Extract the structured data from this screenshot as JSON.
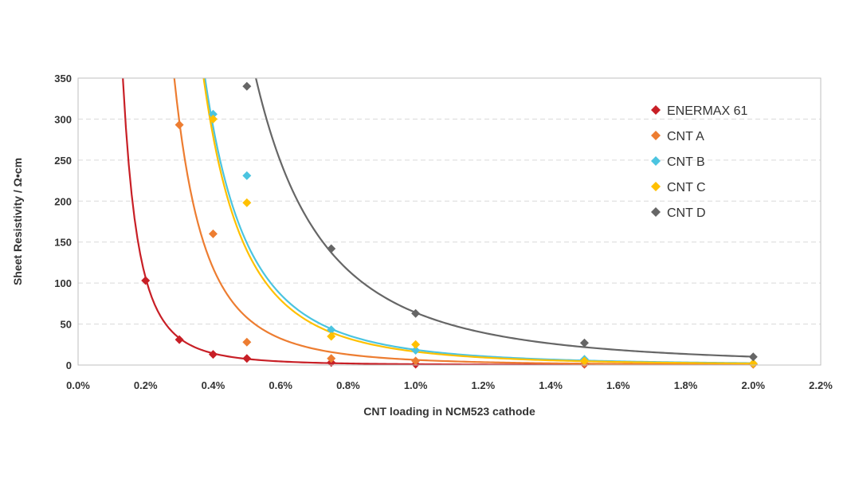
{
  "chart_data": {
    "type": "scatter",
    "title": "",
    "xlabel": "CNT loading in NCM523 cathode",
    "ylabel": "Sheet Resistivity / Ω•cm",
    "xlim": [
      0,
      2.2
    ],
    "ylim": [
      0,
      350
    ],
    "x_ticks": [
      "0.0%",
      "0.2%",
      "0.4%",
      "0.6%",
      "0.8%",
      "1.0%",
      "1.2%",
      "1.4%",
      "1.6%",
      "1.8%",
      "2.0%",
      "2.2%"
    ],
    "y_ticks": [
      "0",
      "50",
      "100",
      "150",
      "200",
      "250",
      "300",
      "350"
    ],
    "x_unit": "%",
    "grid": "horizontal dashed",
    "legend_position": "top-right",
    "marker": "diamond",
    "trendline": "power",
    "series": [
      {
        "name": "ENERMAX 61",
        "color": "#c81f26",
        "points": [
          [
            0.2,
            103
          ],
          [
            0.3,
            31
          ],
          [
            0.4,
            13
          ],
          [
            0.5,
            8
          ],
          [
            0.75,
            3
          ],
          [
            1.0,
            1
          ],
          [
            1.5,
            1
          ],
          [
            2.0,
            1
          ]
        ],
        "fit": {
          "a": 1.0,
          "b": 2.9
        }
      },
      {
        "name": "CNT A",
        "color": "#ed7d31",
        "points": [
          [
            0.3,
            293
          ],
          [
            0.4,
            160
          ],
          [
            0.5,
            28
          ],
          [
            0.75,
            8
          ],
          [
            1.0,
            5
          ],
          [
            1.5,
            2
          ],
          [
            2.0,
            1
          ]
        ],
        "fit": {
          "a": 6.3,
          "b": 3.2
        }
      },
      {
        "name": "CNT B",
        "color": "#4bc4e0",
        "points": [
          [
            0.4,
            306
          ],
          [
            0.5,
            231
          ],
          [
            0.75,
            43
          ],
          [
            1.0,
            18
          ],
          [
            1.5,
            7
          ],
          [
            2.0,
            2
          ]
        ],
        "fit": {
          "a": 18.6,
          "b": 3.0
        }
      },
      {
        "name": "CNT C",
        "color": "#ffc000",
        "points": [
          [
            0.4,
            300
          ],
          [
            0.5,
            198
          ],
          [
            0.75,
            35
          ],
          [
            1.0,
            25
          ],
          [
            1.5,
            5
          ],
          [
            2.0,
            2
          ]
        ],
        "fit": {
          "a": 16.3,
          "b": 3.1
        }
      },
      {
        "name": "CNT D",
        "color": "#666666",
        "points": [
          [
            0.5,
            340
          ],
          [
            0.75,
            142
          ],
          [
            1.0,
            63
          ],
          [
            1.5,
            27
          ],
          [
            2.0,
            10
          ]
        ],
        "fit": {
          "a": 64,
          "b": 2.65
        }
      }
    ]
  }
}
